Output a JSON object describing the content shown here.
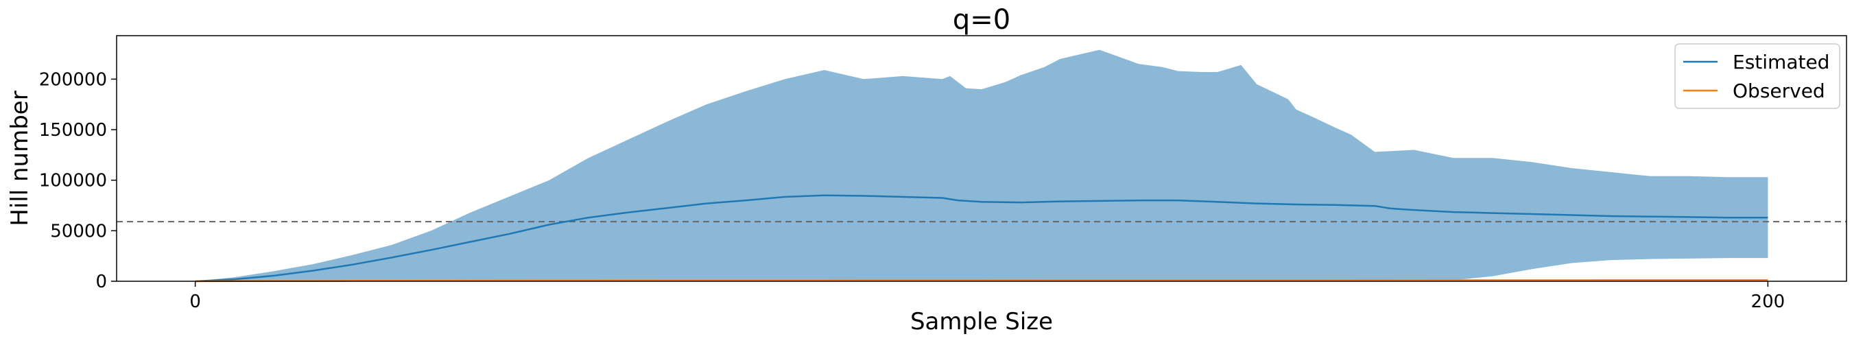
{
  "chart_data": {
    "type": "line",
    "title": "q=0",
    "xlabel": "Sample Size",
    "ylabel": "Hill number",
    "xlim": [
      -10,
      210
    ],
    "ylim": [
      0,
      243000
    ],
    "xticks": [
      0,
      200
    ],
    "yticks": [
      0,
      50000,
      100000,
      150000,
      200000
    ],
    "grid": false,
    "legend_position": "upper right",
    "reference_line": {
      "y": 59000,
      "style": "dashed",
      "color": "#666666"
    },
    "colors": {
      "estimated": "#1f77b4",
      "observed": "#ff7f0e",
      "band": "#8cb8d8"
    },
    "series": [
      {
        "name": "Estimated",
        "x": [
          0,
          5,
          10,
          15,
          20,
          25,
          30,
          35,
          40,
          45,
          50,
          55,
          60,
          65,
          70,
          75,
          80,
          85,
          90,
          95,
          97,
          100,
          105,
          110,
          115,
          120,
          125,
          130,
          135,
          140,
          145,
          150,
          152,
          155,
          160,
          165,
          170,
          175,
          180,
          185,
          190,
          195,
          200
        ],
        "values": [
          0,
          2000,
          5500,
          10500,
          16500,
          23500,
          31000,
          39000,
          47000,
          56000,
          63000,
          68000,
          72500,
          77000,
          80000,
          83500,
          85000,
          84500,
          83500,
          82500,
          80000,
          78500,
          78000,
          79000,
          79500,
          80000,
          80000,
          78500,
          77000,
          76000,
          75500,
          74500,
          72000,
          70500,
          68500,
          67500,
          66500,
          65500,
          64500,
          64000,
          63500,
          63000,
          63000
        ]
      },
      {
        "name": "Observed",
        "x": [
          0,
          10,
          20,
          40,
          60,
          80,
          100,
          120,
          140,
          160,
          180,
          200
        ],
        "values": [
          0,
          300,
          500,
          700,
          800,
          900,
          950,
          1000,
          1050,
          1100,
          1150,
          1200
        ]
      }
    ],
    "confidence_band": {
      "x": [
        0,
        5,
        10,
        15,
        20,
        25,
        30,
        35,
        40,
        45,
        50,
        55,
        60,
        65,
        70,
        75,
        80,
        85,
        90,
        95,
        96,
        98,
        100,
        103,
        105,
        108,
        110,
        115,
        120,
        123,
        125,
        128,
        130,
        133,
        135,
        139,
        140,
        142,
        145,
        147,
        150,
        155,
        160,
        165,
        170,
        175,
        180,
        185,
        190,
        195,
        200
      ],
      "upper": [
        0,
        4000,
        10000,
        17000,
        26000,
        36000,
        50000,
        68000,
        84000,
        100000,
        122000,
        140000,
        158000,
        175000,
        188000,
        200000,
        209000,
        200000,
        203000,
        200000,
        203000,
        191000,
        190000,
        197000,
        204000,
        212000,
        220000,
        229000,
        215000,
        212000,
        208000,
        207000,
        207000,
        214000,
        195000,
        180000,
        170000,
        163000,
        152000,
        145000,
        128000,
        130000,
        122000,
        122000,
        118000,
        112000,
        108000,
        104000,
        104000,
        103000,
        103000
      ],
      "lower": [
        0,
        0,
        0,
        200,
        500,
        800,
        1000,
        1000,
        500,
        0,
        0,
        0,
        0,
        0,
        0,
        0,
        0,
        0,
        0,
        0,
        0,
        0,
        0,
        0,
        0,
        0,
        0,
        0,
        0,
        0,
        0,
        0,
        0,
        0,
        0,
        0,
        0,
        0,
        0,
        0,
        0,
        0,
        1000,
        5000,
        12000,
        18000,
        21000,
        22000,
        22500,
        23000,
        23000
      ]
    }
  }
}
